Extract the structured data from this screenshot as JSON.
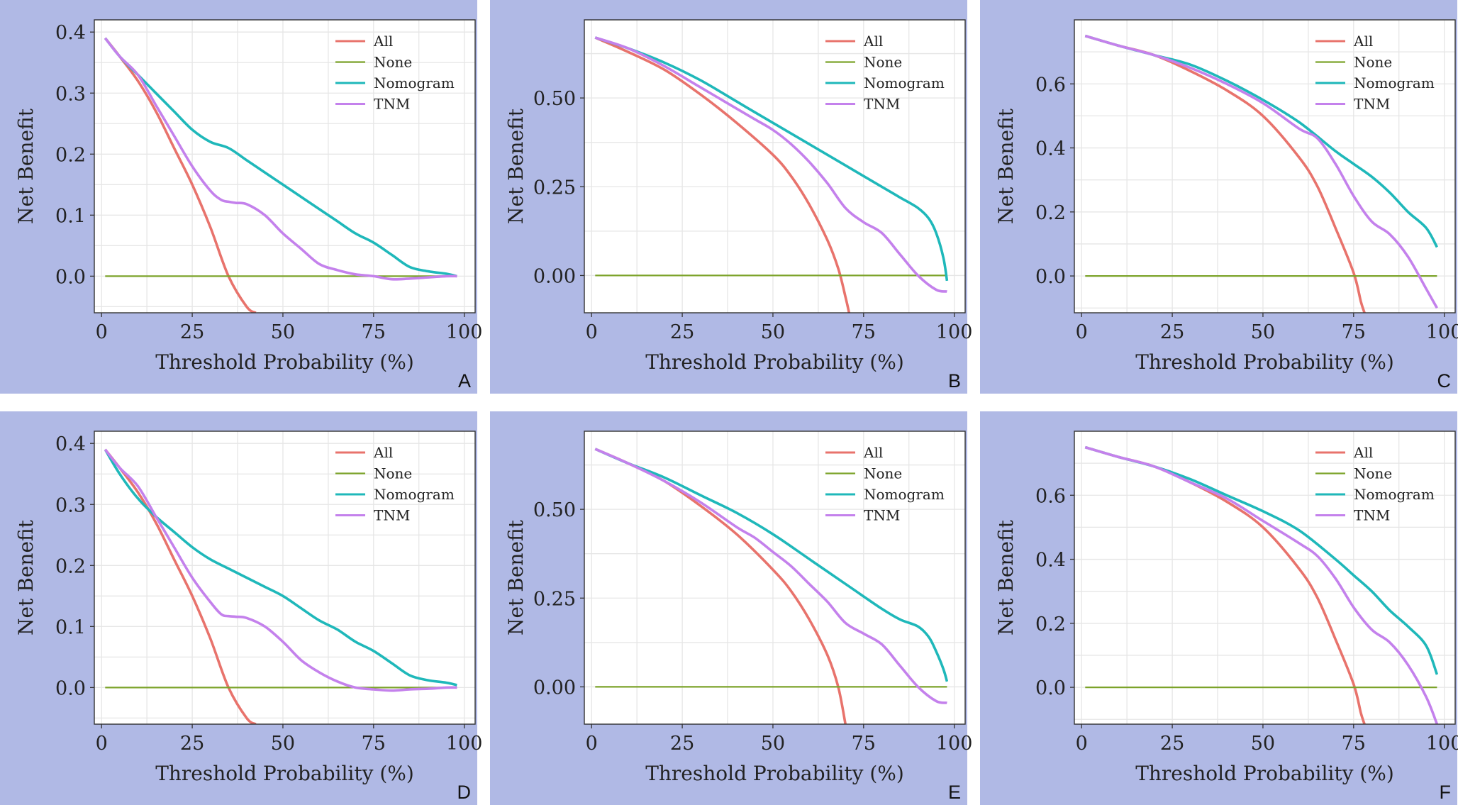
{
  "colors": {
    "background": "#b0b9e5",
    "plot_bg": "#ffffff",
    "grid": "#e6e6e6",
    "All": "#e8736c",
    "None": "#7ca32a",
    "Nomogram": "#1fb8ba",
    "TNM": "#c481ec"
  },
  "chart_data": [
    {
      "panel": "A",
      "type": "line",
      "xlabel": "Threshold Probability (%)",
      "ylabel": "Net Benefit",
      "xlim": [
        -2,
        103
      ],
      "ylim": [
        -0.06,
        0.42
      ],
      "xticks": [
        0,
        25,
        50,
        75,
        100
      ],
      "yticks": [
        0.0,
        0.1,
        0.2,
        0.3,
        0.4
      ],
      "ytick_labels": [
        "0.0",
        "0.1",
        "0.2",
        "0.3",
        "0.4"
      ],
      "legend": [
        "All",
        "None",
        "Nomogram",
        "TNM"
      ],
      "legend_position": "top-right",
      "series": [
        {
          "name": "All",
          "x": [
            1,
            5,
            10,
            15,
            20,
            25,
            30,
            35,
            40,
            42.5
          ],
          "y": [
            0.39,
            0.36,
            0.32,
            0.27,
            0.21,
            0.15,
            0.08,
            0.0,
            -0.05,
            -0.06
          ]
        },
        {
          "name": "None",
          "x": [
            1,
            98
          ],
          "y": [
            0,
            0
          ]
        },
        {
          "name": "Nomogram",
          "x": [
            1,
            5,
            10,
            15,
            20,
            25,
            30,
            35,
            40,
            45,
            50,
            55,
            60,
            65,
            70,
            75,
            80,
            85,
            90,
            95,
            98
          ],
          "y": [
            0.39,
            0.36,
            0.33,
            0.3,
            0.27,
            0.24,
            0.22,
            0.21,
            0.19,
            0.17,
            0.15,
            0.13,
            0.11,
            0.09,
            0.07,
            0.055,
            0.035,
            0.015,
            0.008,
            0.004,
            0.0
          ]
        },
        {
          "name": "TNM",
          "x": [
            1,
            5,
            10,
            15,
            20,
            25,
            30,
            33,
            35,
            37,
            40,
            45,
            50,
            55,
            60,
            65,
            70,
            75,
            80,
            85,
            90,
            95,
            98
          ],
          "y": [
            0.39,
            0.36,
            0.33,
            0.28,
            0.23,
            0.18,
            0.14,
            0.125,
            0.122,
            0.12,
            0.118,
            0.1,
            0.07,
            0.045,
            0.02,
            0.01,
            0.003,
            0.0,
            -0.005,
            -0.004,
            -0.002,
            0.0,
            0.0
          ]
        }
      ]
    },
    {
      "panel": "B",
      "type": "line",
      "xlabel": "Threshold Probability (%)",
      "ylabel": "Net Benefit",
      "xlim": [
        -2,
        103
      ],
      "ylim": [
        -0.105,
        0.72
      ],
      "xticks": [
        0,
        25,
        50,
        75,
        100
      ],
      "yticks": [
        0.0,
        0.25,
        0.5
      ],
      "ytick_labels": [
        "0.00",
        "0.25",
        "0.50"
      ],
      "legend": [
        "All",
        "None",
        "Nomogram",
        "TNM"
      ],
      "legend_position": "top-right",
      "series": [
        {
          "name": "All",
          "x": [
            1,
            10,
            20,
            30,
            40,
            50,
            55,
            60,
            65,
            68,
            70,
            71
          ],
          "y": [
            0.67,
            0.63,
            0.58,
            0.51,
            0.43,
            0.34,
            0.28,
            0.2,
            0.1,
            0.02,
            -0.06,
            -0.105
          ]
        },
        {
          "name": "None",
          "x": [
            1,
            98
          ],
          "y": [
            0,
            0
          ]
        },
        {
          "name": "Nomogram",
          "x": [
            1,
            10,
            20,
            30,
            40,
            50,
            60,
            70,
            80,
            85,
            90,
            93,
            95,
            97,
            98
          ],
          "y": [
            0.67,
            0.64,
            0.6,
            0.55,
            0.49,
            0.43,
            0.37,
            0.31,
            0.25,
            0.22,
            0.19,
            0.16,
            0.12,
            0.05,
            -0.015
          ]
        },
        {
          "name": "TNM",
          "x": [
            1,
            10,
            20,
            30,
            40,
            45,
            50,
            55,
            60,
            65,
            70,
            75,
            80,
            85,
            90,
            95,
            98
          ],
          "y": [
            0.67,
            0.64,
            0.59,
            0.53,
            0.47,
            0.44,
            0.41,
            0.37,
            0.32,
            0.26,
            0.19,
            0.15,
            0.12,
            0.06,
            0.0,
            -0.04,
            -0.045
          ]
        }
      ]
    },
    {
      "panel": "C",
      "type": "line",
      "xlabel": "Threshold Probability (%)",
      "ylabel": "Net Benefit",
      "xlim": [
        -2,
        103
      ],
      "ylim": [
        -0.115,
        0.8
      ],
      "xticks": [
        0,
        25,
        50,
        75,
        100
      ],
      "yticks": [
        0.0,
        0.2,
        0.4,
        0.6
      ],
      "ytick_labels": [
        "0.0",
        "0.2",
        "0.4",
        "0.6"
      ],
      "legend": [
        "All",
        "None",
        "Nomogram",
        "TNM"
      ],
      "legend_position": "top-right",
      "series": [
        {
          "name": "All",
          "x": [
            1,
            10,
            20,
            30,
            40,
            50,
            60,
            65,
            70,
            75,
            77,
            78
          ],
          "y": [
            0.75,
            0.72,
            0.69,
            0.64,
            0.58,
            0.5,
            0.37,
            0.28,
            0.15,
            0.01,
            -0.08,
            -0.115
          ]
        },
        {
          "name": "None",
          "x": [
            1,
            98
          ],
          "y": [
            0,
            0
          ]
        },
        {
          "name": "Nomogram",
          "x": [
            1,
            10,
            20,
            30,
            40,
            50,
            60,
            70,
            75,
            80,
            85,
            90,
            95,
            98
          ],
          "y": [
            0.75,
            0.72,
            0.69,
            0.66,
            0.61,
            0.55,
            0.48,
            0.39,
            0.35,
            0.31,
            0.26,
            0.2,
            0.15,
            0.09
          ]
        },
        {
          "name": "TNM",
          "x": [
            1,
            10,
            20,
            30,
            40,
            50,
            60,
            65,
            70,
            75,
            80,
            85,
            90,
            95,
            98
          ],
          "y": [
            0.75,
            0.72,
            0.69,
            0.65,
            0.6,
            0.54,
            0.46,
            0.43,
            0.35,
            0.25,
            0.17,
            0.13,
            0.06,
            -0.04,
            -0.1
          ]
        }
      ]
    },
    {
      "panel": "D",
      "type": "line",
      "xlabel": "Threshold Probability (%)",
      "ylabel": "Net Benefit",
      "xlim": [
        -2,
        103
      ],
      "ylim": [
        -0.06,
        0.42
      ],
      "xticks": [
        0,
        25,
        50,
        75,
        100
      ],
      "yticks": [
        0.0,
        0.1,
        0.2,
        0.3,
        0.4
      ],
      "ytick_labels": [
        "0.0",
        "0.1",
        "0.2",
        "0.3",
        "0.4"
      ],
      "legend": [
        "All",
        "None",
        "Nomogram",
        "TNM"
      ],
      "legend_position": "top-right",
      "series": [
        {
          "name": "All",
          "x": [
            1,
            5,
            10,
            15,
            20,
            25,
            30,
            35,
            40,
            42.5
          ],
          "y": [
            0.39,
            0.36,
            0.32,
            0.27,
            0.21,
            0.15,
            0.08,
            0.0,
            -0.05,
            -0.06
          ]
        },
        {
          "name": "None",
          "x": [
            1,
            98
          ],
          "y": [
            0,
            0
          ]
        },
        {
          "name": "Nomogram",
          "x": [
            1,
            5,
            10,
            15,
            20,
            25,
            30,
            35,
            40,
            45,
            50,
            55,
            60,
            65,
            70,
            75,
            80,
            85,
            90,
            95,
            98
          ],
          "y": [
            0.39,
            0.35,
            0.31,
            0.28,
            0.255,
            0.23,
            0.21,
            0.195,
            0.18,
            0.165,
            0.15,
            0.13,
            0.11,
            0.095,
            0.075,
            0.06,
            0.04,
            0.02,
            0.012,
            0.008,
            0.004
          ]
        },
        {
          "name": "TNM",
          "x": [
            1,
            5,
            10,
            15,
            20,
            25,
            30,
            33,
            35,
            37,
            40,
            45,
            50,
            55,
            60,
            65,
            70,
            75,
            80,
            85,
            90,
            95,
            98
          ],
          "y": [
            0.39,
            0.36,
            0.33,
            0.28,
            0.23,
            0.18,
            0.14,
            0.12,
            0.117,
            0.116,
            0.114,
            0.1,
            0.075,
            0.045,
            0.025,
            0.01,
            0.0,
            -0.003,
            -0.005,
            -0.003,
            -0.002,
            0.0,
            0.0
          ]
        }
      ]
    },
    {
      "panel": "E",
      "type": "line",
      "xlabel": "Threshold Probability (%)",
      "ylabel": "Net Benefit",
      "xlim": [
        -2,
        103
      ],
      "ylim": [
        -0.105,
        0.72
      ],
      "xticks": [
        0,
        25,
        50,
        75,
        100
      ],
      "yticks": [
        0.0,
        0.25,
        0.5
      ],
      "ytick_labels": [
        "0.00",
        "0.25",
        "0.50"
      ],
      "legend": [
        "All",
        "None",
        "Nomogram",
        "TNM"
      ],
      "legend_position": "top-right",
      "series": [
        {
          "name": "All",
          "x": [
            1,
            10,
            20,
            30,
            40,
            50,
            55,
            60,
            65,
            68,
            70
          ],
          "y": [
            0.67,
            0.63,
            0.58,
            0.51,
            0.43,
            0.33,
            0.27,
            0.19,
            0.09,
            0.0,
            -0.105
          ]
        },
        {
          "name": "None",
          "x": [
            1,
            98
          ],
          "y": [
            0,
            0
          ]
        },
        {
          "name": "Nomogram",
          "x": [
            1,
            10,
            20,
            30,
            40,
            50,
            60,
            70,
            80,
            85,
            90,
            93,
            95,
            97,
            98
          ],
          "y": [
            0.67,
            0.63,
            0.59,
            0.54,
            0.49,
            0.43,
            0.36,
            0.29,
            0.22,
            0.19,
            0.17,
            0.14,
            0.1,
            0.05,
            0.015
          ]
        },
        {
          "name": "TNM",
          "x": [
            1,
            10,
            20,
            30,
            40,
            45,
            50,
            55,
            60,
            65,
            70,
            75,
            80,
            85,
            90,
            95,
            98
          ],
          "y": [
            0.67,
            0.63,
            0.58,
            0.52,
            0.45,
            0.42,
            0.38,
            0.34,
            0.29,
            0.24,
            0.18,
            0.15,
            0.12,
            0.06,
            0.0,
            -0.04,
            -0.045
          ]
        }
      ]
    },
    {
      "panel": "F",
      "type": "line",
      "xlabel": "Threshold Probability (%)",
      "ylabel": "Net Benefit",
      "xlim": [
        -2,
        103
      ],
      "ylim": [
        -0.115,
        0.8
      ],
      "xticks": [
        0,
        25,
        50,
        75,
        100
      ],
      "yticks": [
        0.0,
        0.2,
        0.4,
        0.6
      ],
      "ytick_labels": [
        "0.0",
        "0.2",
        "0.4",
        "0.6"
      ],
      "legend": [
        "All",
        "None",
        "Nomogram",
        "TNM"
      ],
      "legend_position": "top-right",
      "series": [
        {
          "name": "All",
          "x": [
            1,
            10,
            20,
            30,
            40,
            50,
            60,
            65,
            70,
            75,
            77,
            78
          ],
          "y": [
            0.75,
            0.72,
            0.69,
            0.64,
            0.58,
            0.5,
            0.37,
            0.28,
            0.15,
            0.01,
            -0.08,
            -0.115
          ]
        },
        {
          "name": "None",
          "x": [
            1,
            98
          ],
          "y": [
            0,
            0
          ]
        },
        {
          "name": "Nomogram",
          "x": [
            1,
            10,
            20,
            30,
            40,
            50,
            60,
            70,
            75,
            80,
            85,
            90,
            95,
            98
          ],
          "y": [
            0.75,
            0.72,
            0.69,
            0.65,
            0.6,
            0.55,
            0.49,
            0.4,
            0.35,
            0.3,
            0.24,
            0.19,
            0.13,
            0.04
          ]
        },
        {
          "name": "TNM",
          "x": [
            1,
            10,
            20,
            30,
            40,
            50,
            60,
            65,
            70,
            75,
            80,
            85,
            90,
            95,
            98
          ],
          "y": [
            0.75,
            0.72,
            0.69,
            0.64,
            0.59,
            0.52,
            0.45,
            0.41,
            0.34,
            0.25,
            0.18,
            0.14,
            0.07,
            -0.03,
            -0.115
          ]
        }
      ]
    }
  ]
}
